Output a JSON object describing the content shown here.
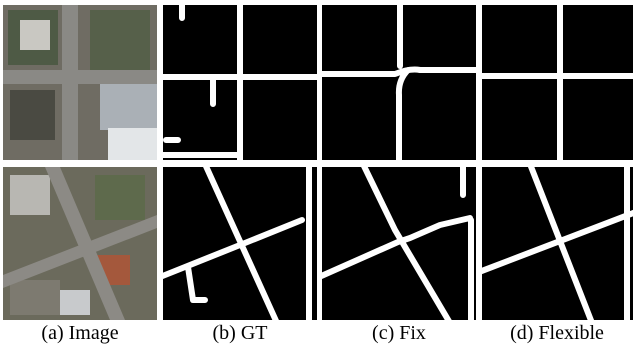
{
  "captions": [
    "(a) Image",
    "(b) GT",
    "(c) Fix",
    "(d) Flexible"
  ]
}
